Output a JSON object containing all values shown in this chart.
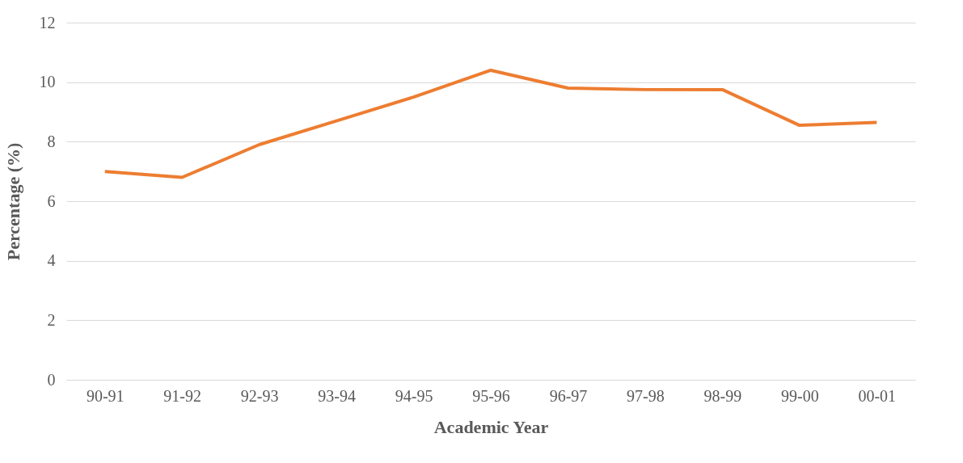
{
  "chart_data": {
    "type": "line",
    "xlabel": "Academic Year",
    "ylabel": "Percentage (%)",
    "categories": [
      "90-91",
      "91-92",
      "92-93",
      "93-94",
      "94-95",
      "95-96",
      "96-97",
      "97-98",
      "98-99",
      "99-00",
      "00-01"
    ],
    "series": [
      {
        "color": "#ed7d31",
        "values": [
          7.0,
          6.8,
          7.9,
          8.7,
          9.5,
          10.4,
          9.8,
          9.75,
          9.75,
          8.55,
          8.65
        ]
      }
    ],
    "ylim": [
      0,
      12
    ],
    "yticks": [
      0,
      2,
      4,
      6,
      8,
      10,
      12
    ],
    "grid": "y",
    "legend": false,
    "marker": "none",
    "line_style": "solid"
  }
}
